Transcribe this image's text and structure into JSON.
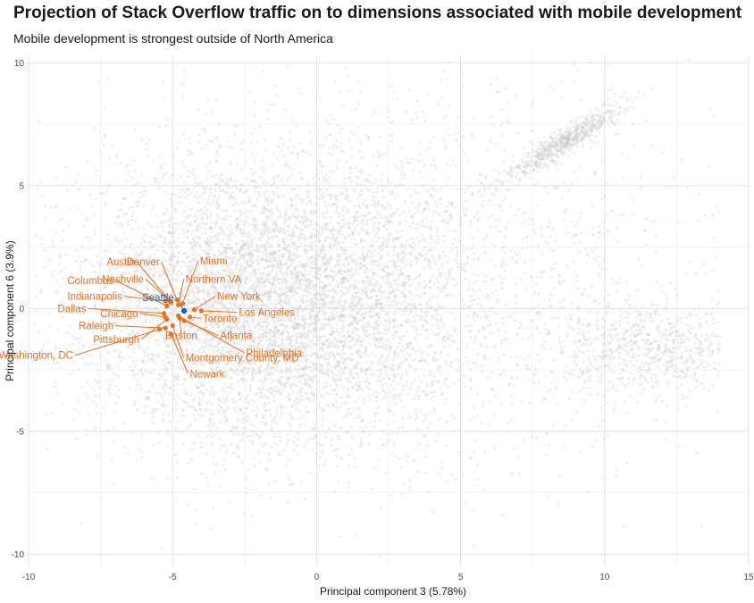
{
  "chart_data": {
    "type": "scatter",
    "title": "Projection of Stack Overflow traffic on to dimensions associated with mobile development",
    "subtitle": "Mobile development is strongest outside of North America",
    "xlabel": "Principal component 3 (5.78%)",
    "ylabel": "Principal component 6 (3.9%)",
    "xlim": [
      -10,
      15
    ],
    "ylim": [
      -10.5,
      10.3
    ],
    "x_ticks": [
      -10,
      -5,
      0,
      5,
      10,
      15
    ],
    "y_ticks": [
      -10,
      -5,
      0,
      5,
      10
    ],
    "grid": true,
    "background_series": {
      "name": "",
      "color": "#c8c8c8",
      "description_clusters": [
        {
          "center": [
            -1.5,
            0.3
          ],
          "spread": [
            3.4,
            3.0
          ],
          "weight": 0.72
        },
        {
          "center": [
            8.6,
            6.8
          ],
          "spread": [
            1.2,
            1.0
          ],
          "weight": 0.07
        },
        {
          "center": [
            11.5,
            -1.6
          ],
          "spread": [
            1.8,
            0.9
          ],
          "weight": 0.08
        },
        {
          "center": [
            5.5,
            1.5
          ],
          "spread": [
            4.5,
            4.0
          ],
          "weight": 0.13
        }
      ]
    },
    "highlight_color": "#e8701f",
    "highlight_special_color": "#1d63b8",
    "points": [
      {
        "label": "Seattle",
        "x": -4.6,
        "y": -0.1,
        "lx": -4.95,
        "ly": 0.3,
        "special": true
      },
      {
        "label": "Austin",
        "x": -5.1,
        "y": 0.3,
        "lx": -6.3,
        "ly": 1.75
      },
      {
        "label": "Denver",
        "x": -4.85,
        "y": 0.35,
        "lx": -5.45,
        "ly": 1.75
      },
      {
        "label": "Miami",
        "x": -4.65,
        "y": 0.2,
        "lx": -4.05,
        "ly": 1.8
      },
      {
        "label": "Nashville",
        "x": -5.05,
        "y": 0.25,
        "lx": -6.0,
        "ly": 1.05
      },
      {
        "label": "Northern VA",
        "x": -4.8,
        "y": 0.15,
        "lx": -4.55,
        "ly": 1.05
      },
      {
        "label": "Columbus",
        "x": -5.2,
        "y": 0.1,
        "lx": -7.05,
        "ly": 1.0
      },
      {
        "label": "Indianapolis",
        "x": -5.25,
        "y": 0.3,
        "lx": -6.75,
        "ly": 0.35
      },
      {
        "label": "New York",
        "x": -4.25,
        "y": -0.05,
        "lx": -3.45,
        "ly": 0.35
      },
      {
        "label": "Dallas",
        "x": -5.3,
        "y": -0.2,
        "lx": -8.0,
        "ly": -0.15
      },
      {
        "label": "Chicago",
        "x": -5.25,
        "y": -0.35,
        "lx": -6.2,
        "ly": -0.35
      },
      {
        "label": "Los Angeles",
        "x": -4.0,
        "y": -0.1,
        "lx": -2.7,
        "ly": -0.3
      },
      {
        "label": "Toronto",
        "x": -4.4,
        "y": -0.35,
        "lx": -3.95,
        "ly": -0.55
      },
      {
        "label": "Raleigh",
        "x": -5.25,
        "y": -0.8,
        "lx": -7.05,
        "ly": -0.85
      },
      {
        "label": "Boston",
        "x": -4.75,
        "y": -0.4,
        "lx": -4.7,
        "ly": -1.25
      },
      {
        "label": "Atlanta",
        "x": -4.6,
        "y": -0.5,
        "lx": -3.35,
        "ly": -1.25
      },
      {
        "label": "Pittsburgh",
        "x": -5.2,
        "y": -0.45,
        "lx": -6.15,
        "ly": -1.4
      },
      {
        "label": "Philadelphia",
        "x": -4.8,
        "y": -0.3,
        "lx": -2.45,
        "ly": -1.95
      },
      {
        "label": "Washington, DC",
        "x": -5.45,
        "y": -0.85,
        "lx": -8.45,
        "ly": -2.05
      },
      {
        "label": "Montgomery County, MD",
        "x": -5.0,
        "y": -0.7,
        "lx": -4.55,
        "ly": -2.15
      },
      {
        "label": "Newark",
        "x": -5.05,
        "y": -1.05,
        "lx": -4.4,
        "ly": -2.8
      }
    ]
  }
}
